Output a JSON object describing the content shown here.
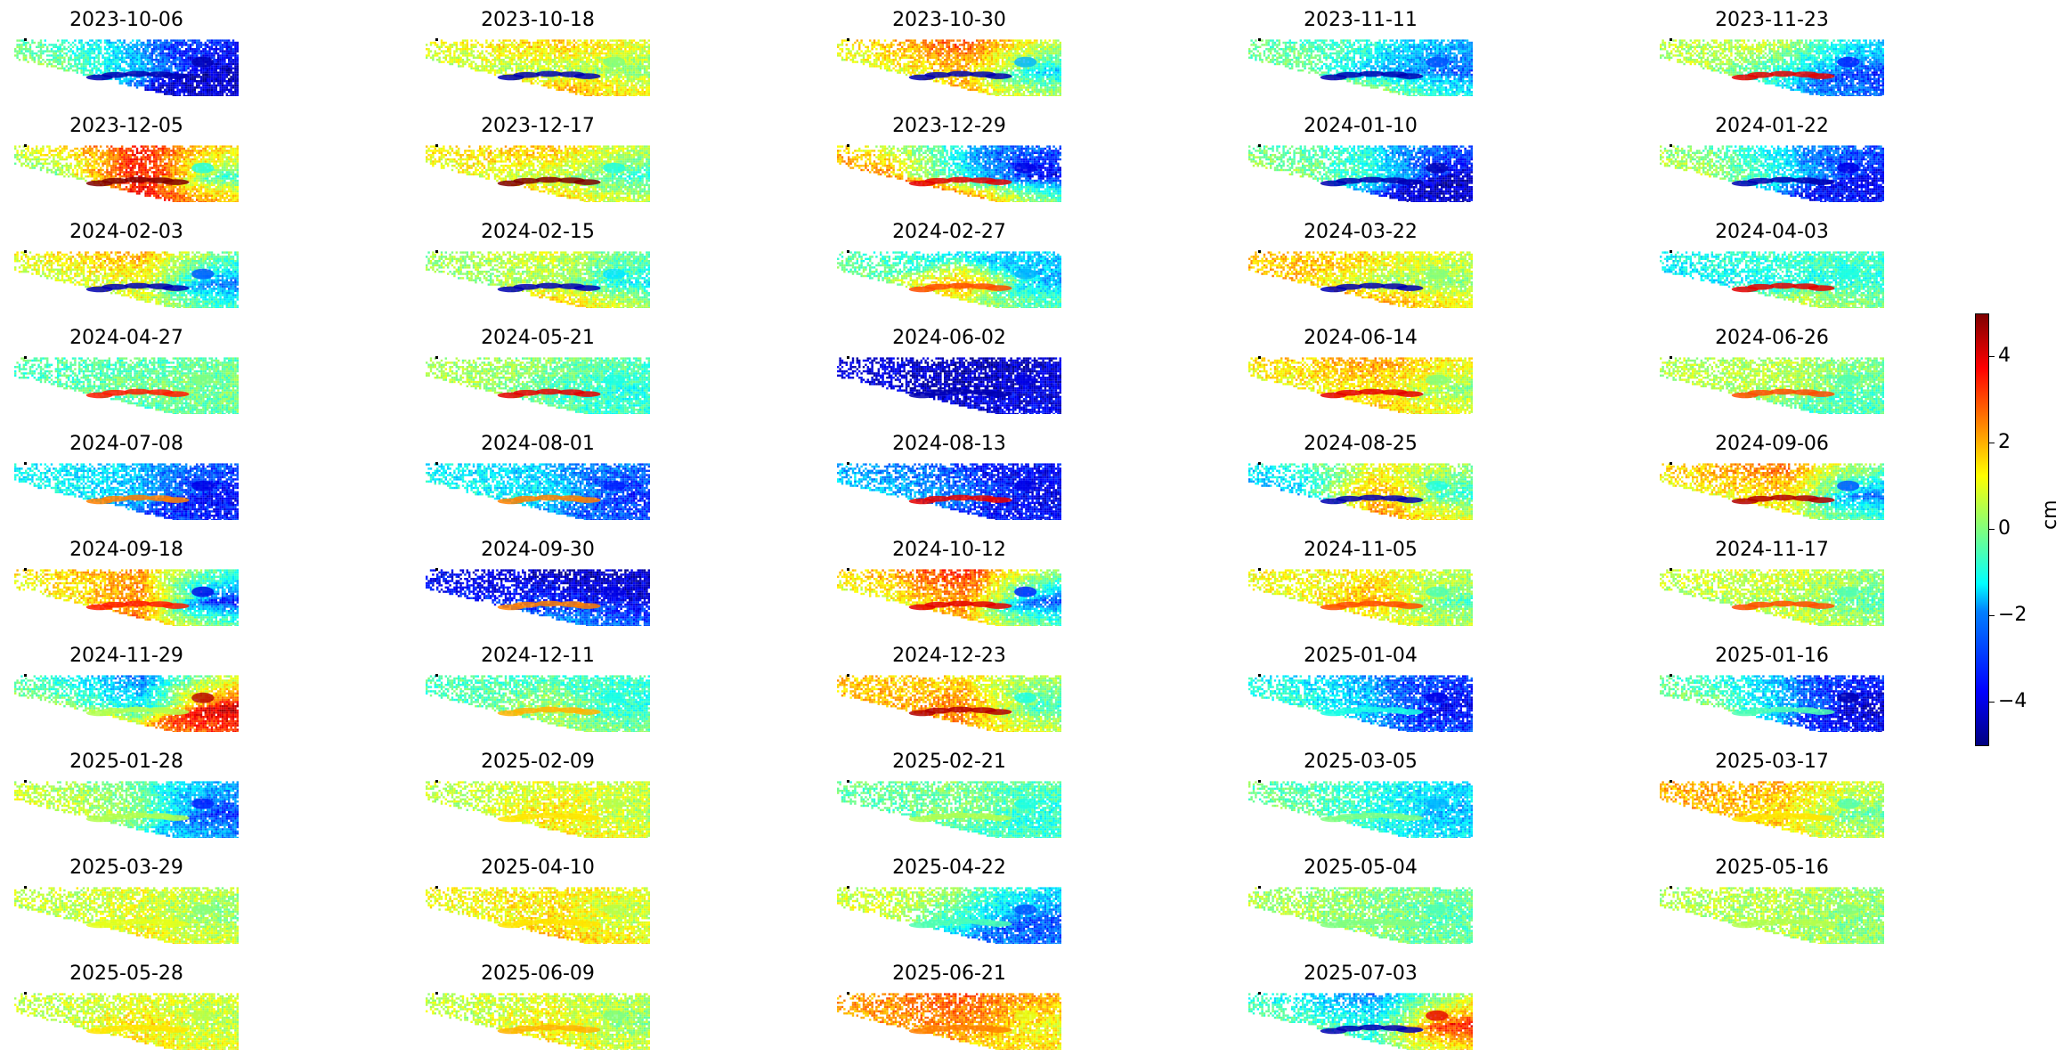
{
  "chart_data": {
    "type": "heatmap",
    "panels": [
      {
        "date": "2023-10-06",
        "west": 0.5,
        "north": -2.5,
        "south": -4.0,
        "east": -4.5,
        "center": -2.0,
        "streak": -4.5
      },
      {
        "date": "2023-10-18",
        "west": 0.5,
        "north": 2.0,
        "south": 2.5,
        "east": 0.0,
        "center": 0.5,
        "streak": -4.5
      },
      {
        "date": "2023-10-30",
        "west": 0.5,
        "north": 3.5,
        "south": 2.5,
        "east": -2.0,
        "center": 2.0,
        "streak": -4.5
      },
      {
        "date": "2023-11-11",
        "west": 0.0,
        "north": -1.0,
        "south": 0.5,
        "east": -3.0,
        "center": -2.0,
        "streak": -4.5
      },
      {
        "date": "2023-11-23",
        "west": 0.5,
        "north": 0.5,
        "south": -2.0,
        "east": -3.5,
        "center": -1.0,
        "streak": 4.0
      },
      {
        "date": "2023-12-05",
        "west": -0.5,
        "north": 4.0,
        "south": 4.5,
        "east": -1.0,
        "center": 4.0,
        "streak": 5.0
      },
      {
        "date": "2023-12-17",
        "west": 1.0,
        "north": 2.0,
        "south": 2.0,
        "east": -1.0,
        "center": 0.5,
        "streak": 5.0
      },
      {
        "date": "2023-12-29",
        "west": 3.0,
        "north": -2.0,
        "south": 3.5,
        "east": -4.0,
        "center": -1.5,
        "streak": 4.0
      },
      {
        "date": "2024-01-10",
        "west": 0.5,
        "north": -1.5,
        "south": -4.0,
        "east": -4.5,
        "center": -1.0,
        "streak": -4.5
      },
      {
        "date": "2024-01-22",
        "west": 1.0,
        "north": -2.0,
        "south": -3.5,
        "east": -4.0,
        "center": -1.5,
        "streak": -4.5
      },
      {
        "date": "2024-02-03",
        "west": 0.5,
        "north": 2.5,
        "south": 1.5,
        "east": -3.0,
        "center": 1.0,
        "streak": -4.5
      },
      {
        "date": "2024-02-15",
        "west": 0.0,
        "north": 1.0,
        "south": 2.5,
        "east": -1.5,
        "center": 0.5,
        "streak": -4.5
      },
      {
        "date": "2024-02-27",
        "west": 0.0,
        "north": -1.5,
        "south": 1.0,
        "east": -2.0,
        "center": 2.5,
        "streak": 3.0
      },
      {
        "date": "2024-03-22",
        "west": 2.0,
        "north": 1.5,
        "south": 2.5,
        "east": 0.0,
        "center": 0.5,
        "streak": -4.5
      },
      {
        "date": "2024-04-03",
        "west": -1.5,
        "north": -0.5,
        "south": 1.0,
        "east": -1.0,
        "center": -1.0,
        "streak": 4.0
      },
      {
        "date": "2024-04-27",
        "west": -0.5,
        "north": -0.5,
        "south": -0.5,
        "east": 0.0,
        "center": 0.0,
        "streak": 3.5
      },
      {
        "date": "2024-05-21",
        "west": 0.5,
        "north": 0.0,
        "south": -0.5,
        "east": -1.0,
        "center": -0.5,
        "streak": 4.0
      },
      {
        "date": "2024-06-02",
        "west": -4.0,
        "north": -4.5,
        "south": -4.0,
        "east": -4.0,
        "center": -4.5,
        "streak": -4.5
      },
      {
        "date": "2024-06-14",
        "west": 1.0,
        "north": 2.5,
        "south": 2.0,
        "east": 0.0,
        "center": 1.5,
        "streak": 4.0
      },
      {
        "date": "2024-06-26",
        "west": 0.5,
        "north": 0.5,
        "south": -0.5,
        "east": -0.5,
        "center": 0.5,
        "streak": 3.0
      },
      {
        "date": "2024-07-08",
        "west": -1.0,
        "north": -2.0,
        "south": -3.0,
        "east": -4.0,
        "center": -2.0,
        "streak": 2.5
      },
      {
        "date": "2024-08-01",
        "west": -1.0,
        "north": -2.0,
        "south": -2.5,
        "east": -3.5,
        "center": -1.5,
        "streak": 2.5
      },
      {
        "date": "2024-08-13",
        "west": -1.5,
        "north": -3.5,
        "south": -3.5,
        "east": -4.0,
        "center": -2.5,
        "streak": 4.0
      },
      {
        "date": "2024-08-25",
        "west": -2.5,
        "north": 1.5,
        "south": 3.0,
        "east": -1.0,
        "center": 2.5,
        "streak": -4.5
      },
      {
        "date": "2024-09-06",
        "west": 1.0,
        "north": 3.0,
        "south": 1.5,
        "east": -3.0,
        "center": 1.5,
        "streak": 4.5
      },
      {
        "date": "2024-09-18",
        "west": 1.0,
        "north": 2.5,
        "south": 3.0,
        "east": -4.0,
        "center": 2.5,
        "streak": 3.5
      },
      {
        "date": "2024-09-30",
        "west": -3.5,
        "north": -4.5,
        "south": -2.0,
        "east": -4.0,
        "center": -3.5,
        "streak": 2.5
      },
      {
        "date": "2024-10-12",
        "west": 0.5,
        "north": 4.0,
        "south": 2.5,
        "east": -3.5,
        "center": 2.5,
        "streak": 4.0
      },
      {
        "date": "2024-11-05",
        "west": 1.0,
        "north": 1.5,
        "south": 1.5,
        "east": -0.5,
        "center": 2.0,
        "streak": 3.0
      },
      {
        "date": "2024-11-17",
        "west": 0.5,
        "north": 1.0,
        "south": 1.0,
        "east": -0.5,
        "center": 0.5,
        "streak": 3.0
      },
      {
        "date": "2024-11-29",
        "west": 0.5,
        "north": -3.0,
        "south": 2.0,
        "east": 4.5,
        "center": -1.5,
        "streak": 0.5
      },
      {
        "date": "2024-12-11",
        "west": -0.5,
        "north": -0.5,
        "south": 0.5,
        "east": -1.0,
        "center": 0.5,
        "streak": 2.0
      },
      {
        "date": "2024-12-23",
        "west": 2.0,
        "north": 1.5,
        "south": 2.5,
        "east": -1.0,
        "center": 2.5,
        "streak": 4.5
      },
      {
        "date": "2025-01-04",
        "west": -0.5,
        "north": -2.5,
        "south": -2.5,
        "east": -4.0,
        "center": -2.0,
        "streak": -1.0
      },
      {
        "date": "2025-01-16",
        "west": 0.5,
        "north": -2.5,
        "south": -3.0,
        "east": -4.5,
        "center": -2.0,
        "streak": -0.5
      },
      {
        "date": "2025-01-28",
        "west": 1.0,
        "north": -0.5,
        "south": -1.0,
        "east": -3.5,
        "center": 0.0,
        "streak": 0.5
      },
      {
        "date": "2025-02-09",
        "west": 0.5,
        "north": 1.0,
        "south": 1.5,
        "east": 0.5,
        "center": 1.5,
        "streak": 1.5
      },
      {
        "date": "2025-02-21",
        "west": -0.5,
        "north": 0.0,
        "south": -0.5,
        "east": -1.0,
        "center": 0.0,
        "streak": 0.5
      },
      {
        "date": "2025-03-05",
        "west": 0.0,
        "north": -1.0,
        "south": -1.0,
        "east": -2.0,
        "center": -1.0,
        "streak": 0.0
      },
      {
        "date": "2025-03-17",
        "west": 2.0,
        "north": 2.0,
        "south": 1.5,
        "east": -0.5,
        "center": 1.5,
        "streak": 1.5
      },
      {
        "date": "2025-03-29",
        "west": 0.5,
        "north": 1.0,
        "south": 1.5,
        "east": 0.0,
        "center": 1.0,
        "streak": 1.0
      },
      {
        "date": "2025-04-10",
        "west": 1.0,
        "north": 1.5,
        "south": 2.0,
        "east": 0.5,
        "center": 1.5,
        "streak": 1.5
      },
      {
        "date": "2025-04-22",
        "west": 1.0,
        "north": 0.0,
        "south": -2.5,
        "east": -3.0,
        "center": -1.0,
        "streak": -0.5
      },
      {
        "date": "2025-05-04",
        "west": 0.5,
        "north": 0.0,
        "south": 0.0,
        "east": -0.5,
        "center": 0.0,
        "streak": 0.0
      },
      {
        "date": "2025-05-16",
        "west": 0.5,
        "north": 0.5,
        "south": 0.5,
        "east": 0.0,
        "center": 0.5,
        "streak": 0.5
      },
      {
        "date": "2025-05-28",
        "west": 0.5,
        "north": 1.0,
        "south": 1.5,
        "east": 0.5,
        "center": 1.5,
        "streak": 1.5
      },
      {
        "date": "2025-06-09",
        "west": 0.5,
        "north": 1.0,
        "south": 1.5,
        "east": 0.0,
        "center": 1.5,
        "streak": 2.0
      },
      {
        "date": "2025-06-21",
        "west": 2.0,
        "north": 3.0,
        "south": 2.0,
        "east": 1.0,
        "center": 2.5,
        "streak": 2.5
      },
      {
        "date": "2025-07-03",
        "west": 0.0,
        "north": -3.0,
        "south": -1.0,
        "east": 4.0,
        "center": -1.0,
        "streak": -4.5
      }
    ],
    "colorbar": {
      "label": "cm",
      "colormap": "jet",
      "range": [
        -5,
        5
      ],
      "ticks": [
        -4,
        -2,
        0,
        2,
        4
      ],
      "tick_labels": [
        "−4",
        "−2",
        "0",
        "2",
        "4"
      ]
    },
    "grid": false,
    "axes": "off"
  }
}
